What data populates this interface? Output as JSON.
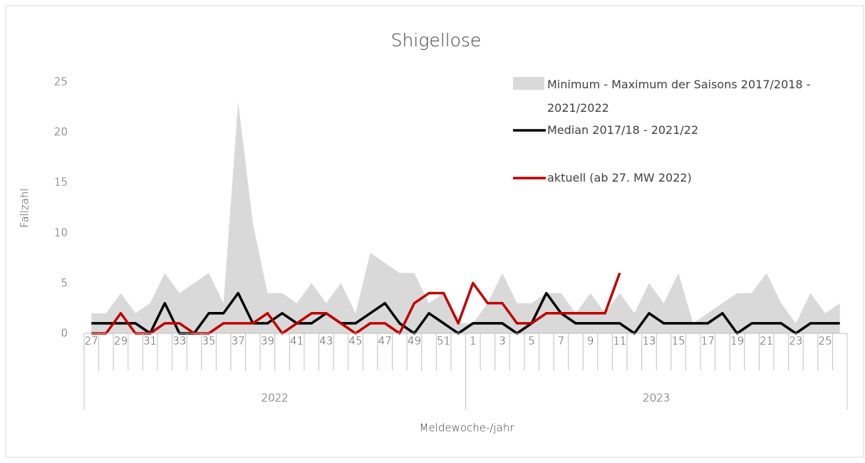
{
  "chart_data": {
    "type": "line",
    "title": "Shigellose",
    "ylabel": "Fallzahl",
    "xlabel": "Meldewoche-/jahr",
    "categories": [
      "27",
      null,
      "29",
      null,
      "31",
      null,
      "33",
      null,
      "35",
      null,
      "37",
      null,
      "39",
      null,
      "41",
      null,
      "43",
      null,
      "45",
      null,
      "47",
      null,
      "49",
      null,
      "51",
      null,
      "1",
      null,
      "3",
      null,
      "5",
      null,
      "7",
      null,
      "9",
      null,
      "11",
      null,
      "13",
      null,
      "15",
      null,
      "17",
      null,
      "19",
      null,
      "21",
      null,
      "23",
      null,
      "25",
      null
    ],
    "groups": [
      "2022",
      "2023"
    ],
    "ylim": [
      0,
      25
    ],
    "yticks": [
      0,
      5,
      10,
      15,
      20,
      25
    ],
    "series": [
      {
        "name": "Minimum - Maximum der Saisons 2017/2018 - 2021/2022",
        "kind": "range",
        "color": "#d9d9d9",
        "high": [
          2,
          2,
          4,
          2,
          3,
          6,
          4,
          5,
          6,
          3,
          23,
          11,
          4,
          4,
          3,
          5,
          3,
          5,
          2,
          8,
          7,
          6,
          6,
          3,
          4,
          1,
          1,
          3,
          6,
          3,
          3,
          4,
          4,
          2,
          4,
          2,
          4,
          2,
          5,
          3,
          6,
          1,
          2,
          3,
          4,
          4,
          6,
          3,
          1,
          4,
          2,
          3
        ],
        "low": [
          0,
          0,
          0,
          0,
          0,
          0,
          0,
          0,
          0,
          0,
          0,
          0,
          0,
          0,
          0,
          0,
          0,
          0,
          0,
          0,
          0,
          0,
          0,
          0,
          0,
          0,
          0,
          0,
          0,
          0,
          0,
          0,
          0,
          0,
          0,
          0,
          0,
          0,
          0,
          0,
          0,
          0,
          0,
          0,
          0,
          0,
          0,
          0,
          0,
          0,
          0,
          0
        ]
      },
      {
        "name": "Median 2017/18 - 2021/22",
        "kind": "line",
        "color": "#000000",
        "values": [
          1,
          1,
          1,
          1,
          0,
          3,
          0,
          0,
          2,
          2,
          4,
          1,
          1,
          2,
          1,
          1,
          2,
          1,
          1,
          2,
          3,
          1,
          0,
          2,
          1,
          0,
          1,
          1,
          1,
          0,
          1,
          4,
          2,
          1,
          1,
          1,
          1,
          0,
          2,
          1,
          1,
          1,
          1,
          2,
          0,
          1,
          1,
          1,
          0,
          1,
          1,
          1
        ]
      },
      {
        "name": "aktuell (ab 27. MW 2022)",
        "kind": "line",
        "color": "#c00000",
        "values": [
          0,
          0,
          2,
          0,
          0,
          1,
          1,
          0,
          0,
          1,
          1,
          1,
          2,
          0,
          1,
          2,
          2,
          1,
          0,
          1,
          1,
          0,
          3,
          4,
          4,
          1,
          5,
          3,
          3,
          1,
          1,
          2,
          2,
          2,
          2,
          2,
          6,
          null,
          null,
          null,
          null,
          null,
          null,
          null,
          null,
          null,
          null,
          null,
          null,
          null,
          null,
          null
        ]
      }
    ]
  }
}
